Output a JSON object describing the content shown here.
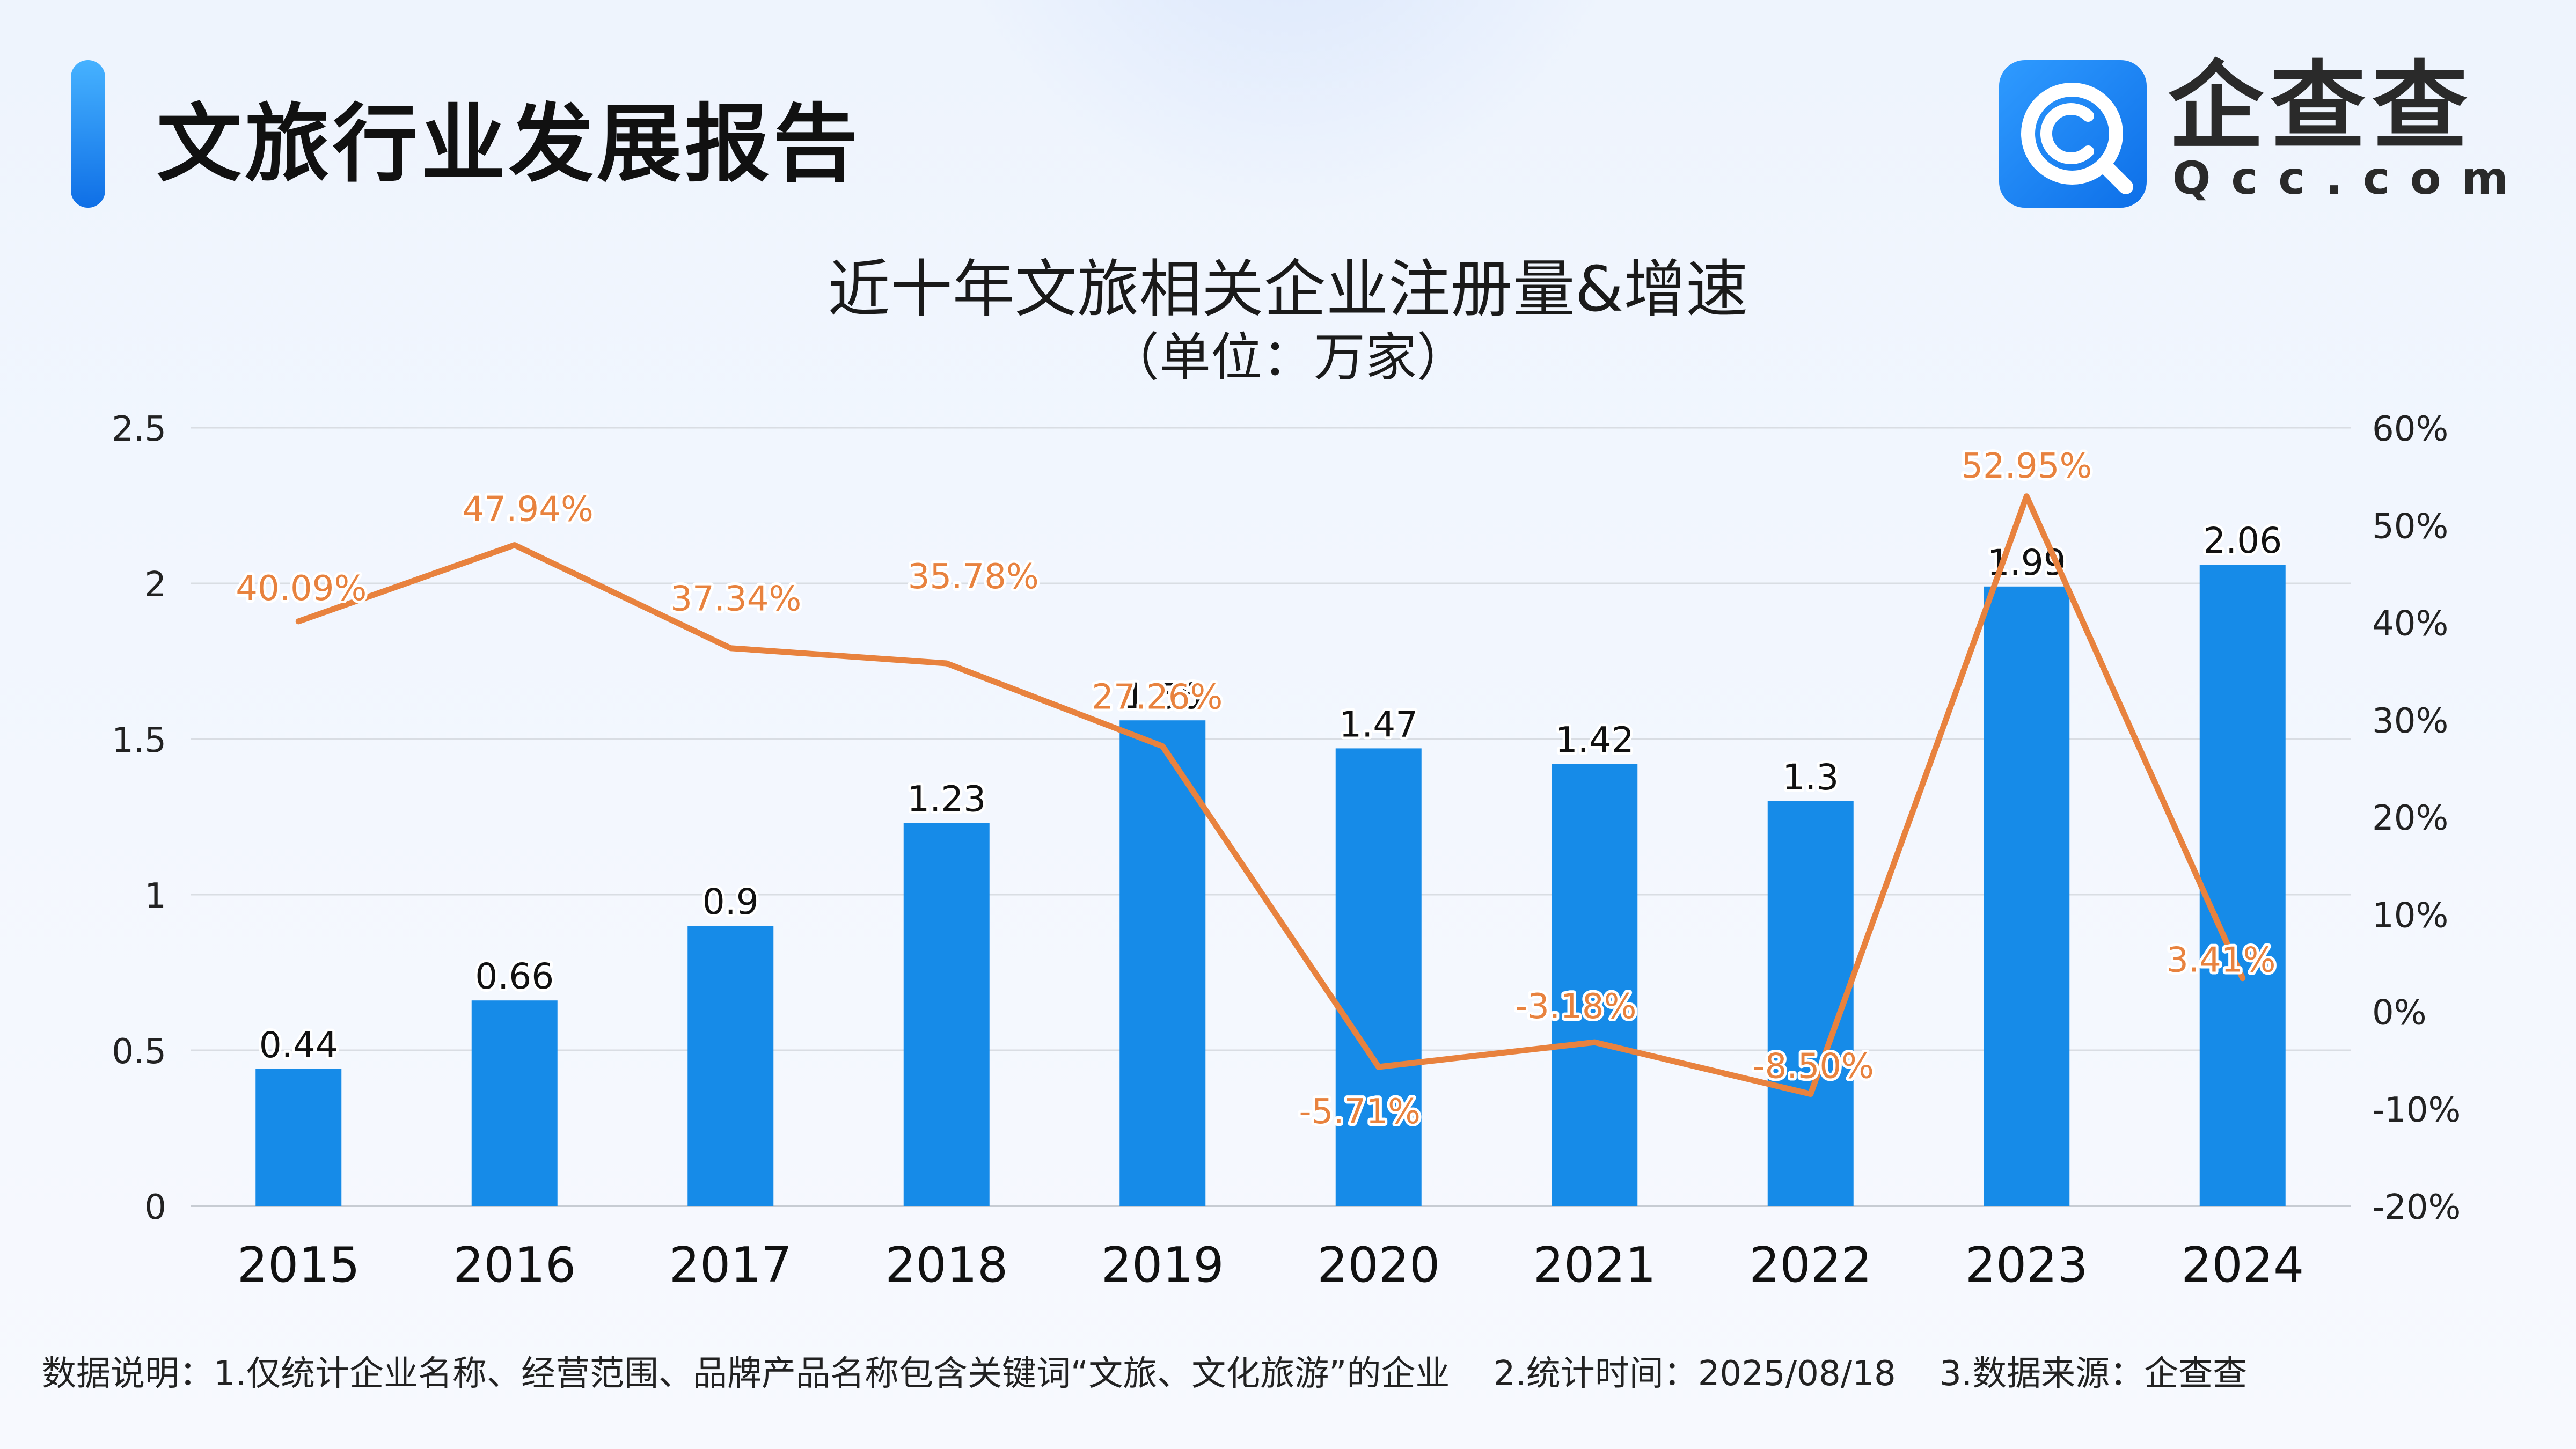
{
  "header": {
    "title": "文旅行业发展报告"
  },
  "logo": {
    "name": "企查查",
    "domain": "Qcc.com"
  },
  "footnote": {
    "part1": "数据说明：1.仅统计企业名称、经营范围、品牌产品名称包含关键词“文旅、文化旅游”的企业",
    "part2": "2.统计时间：2025/08/18",
    "part3": "3.数据来源：企查查"
  },
  "colors": {
    "bar": "#168be8",
    "line": "#e8823e",
    "line_label": "#e8823e",
    "grid": "#d9dde3",
    "accent": "#1a7ff0"
  },
  "chart_data": {
    "type": "bar+line",
    "title": "近十年文旅相关企业注册量&增速",
    "subtitle": "（单位：万家）",
    "categories": [
      "2015",
      "2016",
      "2017",
      "2018",
      "2019",
      "2020",
      "2021",
      "2022",
      "2023",
      "2024"
    ],
    "series": [
      {
        "type": "bar",
        "axis": "left",
        "values": [
          0.44,
          0.66,
          0.9,
          1.23,
          1.56,
          1.47,
          1.42,
          1.3,
          1.99,
          2.06
        ],
        "labels": [
          "0.44",
          "0.66",
          "0.9",
          "1.23",
          "1.56",
          "1.47",
          "1.42",
          "1.3",
          "1.99",
          "2.06"
        ]
      },
      {
        "type": "line",
        "axis": "right",
        "values": [
          40.09,
          47.94,
          37.34,
          35.78,
          27.26,
          -5.71,
          -3.18,
          -8.5,
          52.95,
          3.41
        ],
        "labels": [
          "40.09%",
          "47.94%",
          "37.34%",
          "35.78%",
          "27.26%",
          "-5.71%",
          "-3.18%",
          "-8.50%",
          "52.95%",
          "3.41%"
        ]
      }
    ],
    "y_left": {
      "range": [
        0,
        2.5
      ],
      "ticks": [
        0,
        0.5,
        1,
        1.5,
        2,
        2.5
      ],
      "tick_labels": [
        "0",
        "0.5",
        "1",
        "1.5",
        "2",
        "2.5"
      ]
    },
    "y_right": {
      "range": [
        -20,
        60
      ],
      "ticks": [
        -20,
        -10,
        0,
        10,
        20,
        30,
        40,
        50,
        60
      ],
      "tick_labels": [
        "-20%",
        "-10%",
        "0%",
        "10%",
        "20%",
        "30%",
        "40%",
        "50%",
        "60%"
      ]
    },
    "grid": true,
    "legend": "none"
  }
}
